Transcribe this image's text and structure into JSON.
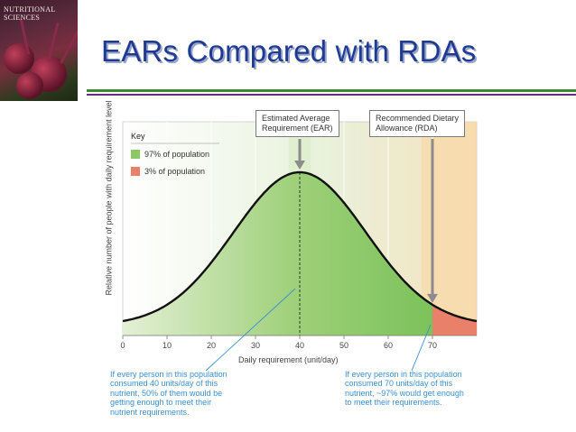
{
  "book": {
    "title_line1": "NUTRITIONAL",
    "title_line2": "SCIENCES"
  },
  "slide": {
    "title": "EARs Compared with RDAs"
  },
  "colors": {
    "title": "#1f3a93",
    "green_region": "#8cc864",
    "red_region": "#e8806a",
    "ear_band": "#d8ebc4",
    "rda_band": "#f8d8a8",
    "annotation": "#3b8fd0"
  },
  "chart_data": {
    "type": "area",
    "xlabel": "Daily requirement (unit/day)",
    "ylabel": "Relative number of people with daily requirement level",
    "xlim": [
      0,
      80
    ],
    "x_ticks": [
      "0",
      "10",
      "20",
      "30",
      "40",
      "50",
      "60",
      "70"
    ],
    "distribution": {
      "kind": "normal",
      "mean": 40,
      "sd": 15
    },
    "markers": [
      {
        "x": 40,
        "label": "Estimated Average Requirement (EAR)",
        "label_line1": "Estimated Average",
        "label_line2": "Requirement (EAR)"
      },
      {
        "x": 70,
        "label": "Recommended Dietary Allowance (RDA)",
        "label_line1": "Recommended Dietary",
        "label_line2": "Allowance (RDA)"
      }
    ],
    "key": {
      "title": "Key",
      "items": [
        {
          "label": "97% of population",
          "color": "#8cc864"
        },
        {
          "label": "3% of population",
          "color": "#e8806a"
        }
      ]
    },
    "annotations": [
      {
        "x": 40,
        "lines": [
          "If every person in this population",
          "consumed 40 units/day of this",
          "nutrient, 50% of them would be",
          "getting enough to meet their",
          "nutrient requirements."
        ]
      },
      {
        "x": 70,
        "lines": [
          "If every person in this population",
          "consumed 70 units/day of this",
          "nutrient, ~97% would get enough",
          "to meet their requirements."
        ]
      }
    ]
  }
}
